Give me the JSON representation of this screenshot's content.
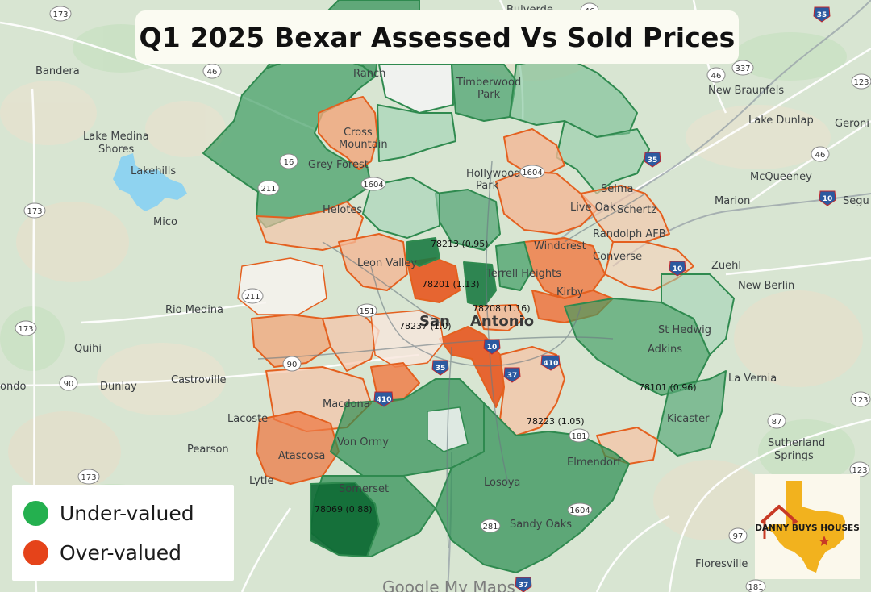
{
  "title": "Q1 2025 Bexar Assessed Vs Sold Prices",
  "legend": {
    "items": [
      {
        "label": "Under-valued",
        "color": "#24b04f"
      },
      {
        "label": "Over-valued",
        "color": "#e5431a"
      }
    ]
  },
  "zip_labels": [
    {
      "text": "78213 (0.95)",
      "zip": "78213",
      "ratio": 0.95,
      "category": "Under-valued"
    },
    {
      "text": "78201 (1.13)",
      "zip": "78201",
      "ratio": 1.13,
      "category": "Over-valued"
    },
    {
      "text": "78208 (1.16)",
      "zip": "78208",
      "ratio": 1.16,
      "category": "Over-valued"
    },
    {
      "text": "78237 (1.0)",
      "zip": "78237",
      "ratio": 1.0
    },
    {
      "text": "78101 (0.96)",
      "zip": "78101",
      "ratio": 0.96,
      "category": "Under-valued"
    },
    {
      "text": "78223 (1.05)",
      "zip": "78223",
      "ratio": 1.05,
      "category": "Over-valued"
    },
    {
      "text": "78069 (0.88)",
      "zip": "78069",
      "ratio": 0.88,
      "category": "Under-valued"
    }
  ],
  "places": {
    "bandera": "Bandera",
    "lake_medina_1": "Lake Medina",
    "lake_medina_2": "Shores",
    "lakehills": "Lakehills",
    "mico": "Mico",
    "rio_medina": "Rio Medina",
    "quihi": "Quihi",
    "castroville": "Castroville",
    "dunlay": "Dunlay",
    "condo": "ondo",
    "lacoste": "Lacoste",
    "pearson": "Pearson",
    "lytle": "Lytle",
    "atascosa": "Atascosa",
    "von_ormy": "Von Ormy",
    "macdona": "Macdona",
    "leon_valley": "Leon Valley",
    "helotes": "Helotes",
    "grey_forest": "Grey Forest",
    "cross_mountain_1": "Cross",
    "cross_mountain_2": "Mountain",
    "ranch": "Ranch",
    "timberwood_1": "Timberwood",
    "timberwood_2": "Park",
    "hollywood_1": "Hollywood",
    "hollywood_2": "Park",
    "bulverde": "Bulverde",
    "new_braunfels": "New Braunfels",
    "lake_dunlap": "Lake Dunlap",
    "geronimo": "Geroni",
    "mcqueeney": "McQueeney",
    "marion": "Marion",
    "seguin": "Segu",
    "selma": "Selma",
    "schertz": "Schertz",
    "live_oak": "Live Oak",
    "randolph_afb": "Randolph AFB",
    "windcrest": "Windcrest",
    "converse": "Converse",
    "zuehl": "Zuehl",
    "new_berlin": "New Berlin",
    "kirby": "Kirby",
    "st_hedwig": "St Hedwig",
    "adkins": "Adkins",
    "la_vernia": "La Vernia",
    "kicaster": "Kicaster",
    "sutherland_1": "Sutherland",
    "sutherland_2": "Springs",
    "elmendorf": "Elmendorf",
    "losoya": "Losoya",
    "sandy_oaks": "Sandy Oaks",
    "floresville": "Floresville",
    "somerset": "Somerset",
    "terrell_hills": "Terrell Heights",
    "san_antonio_1": "San",
    "san_antonio_2": "Antonio"
  },
  "road_shields": {
    "s173a": "173",
    "s46a": "46",
    "s173b": "173",
    "s211": "211",
    "s16": "16",
    "s1604a": "1604",
    "s211b": "211",
    "s151": "151",
    "s90": "90",
    "s90b": "90",
    "s173c": "173",
    "s173d": "173",
    "s337": "337",
    "s46b": "46",
    "s46c": "46",
    "s123a": "123",
    "s123b": "123",
    "s123c": "123",
    "s87": "87",
    "s181a": "181",
    "s181b": "181",
    "s97": "97",
    "s1604b": "1604",
    "s1604c": "1604",
    "s281": "281",
    "i35a": "35",
    "i35b": "35",
    "i10a": "10",
    "i10b": "10",
    "i410a": "410",
    "i410b": "410",
    "i37": "37",
    "i35c": "35",
    "i10c": "10",
    "i37b": "37",
    "i46d": "46"
  },
  "attribution": "Google My Maps",
  "logo": {
    "line1": "DANNY BUYS HOUSES",
    "brand_color": "#f2b21e",
    "roof_color": "#c83a25"
  }
}
